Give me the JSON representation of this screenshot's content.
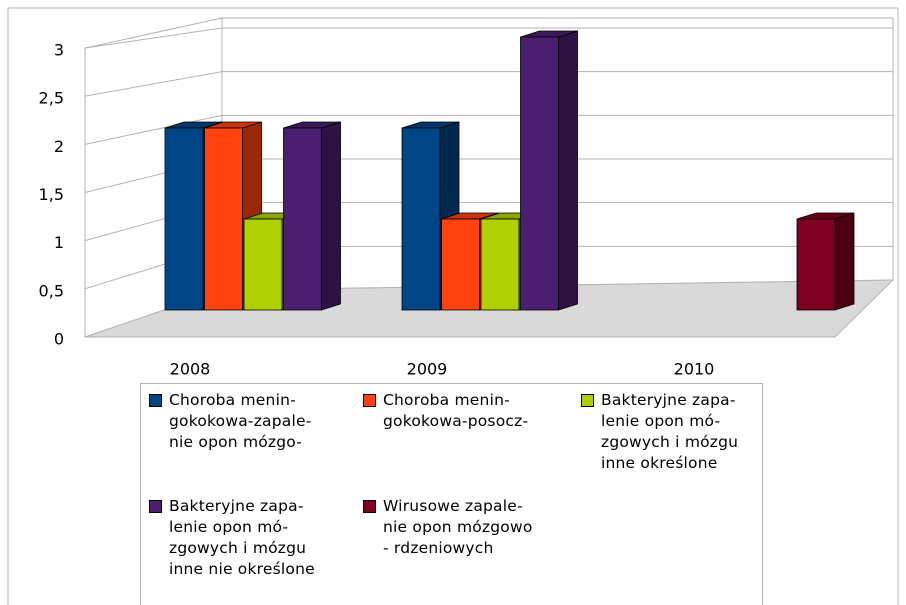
{
  "chart_data": {
    "type": "bar3d",
    "categories": [
      "2008",
      "2009",
      "2010"
    ],
    "series": [
      {
        "name": "Choroba menin-\ngokokowa-zapale-\nnie opon mózgo-",
        "color": "#004586",
        "values": [
          2,
          2,
          null
        ]
      },
      {
        "name": "Choroba menin-\ngokokowa-posocz-",
        "color": "#ff420e",
        "values": [
          2,
          1,
          null
        ]
      },
      {
        "name": "Bakteryjne zapa-\nlenie opon mó-\nzgowych i mózgu\ninne określone",
        "color": "#aecf00",
        "values": [
          1,
          1,
          null
        ]
      },
      {
        "name": "Bakteryjne zapa-\nlenie opon mó-\nzgowych i mózgu\ninne nie określone",
        "color": "#4b1f6f",
        "values": [
          2,
          3,
          null
        ]
      },
      {
        "name": "Wirusowe zapale-\nnie opon mózgowo\n- rdzeniowych",
        "color": "#7e0021",
        "values": [
          null,
          null,
          1
        ]
      }
    ],
    "ylim": [
      0,
      3
    ],
    "yticks": [
      0,
      {
        "value": 0.5,
        "label": "0,5"
      },
      1,
      {
        "value": 1.5,
        "label": "1,5"
      },
      2,
      {
        "value": 2.5,
        "label": "2,5"
      },
      3
    ],
    "grid": true
  }
}
